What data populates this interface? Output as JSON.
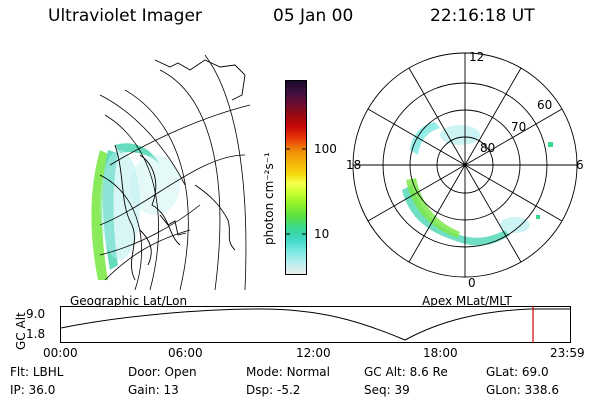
{
  "header": {
    "instrument": "Ultraviolet Imager",
    "date": "05 Jan 00",
    "time": "22:16:18 UT"
  },
  "geo_panel": {
    "label": "Geographic Lat/Lon"
  },
  "colorbar": {
    "unit": "photon cm⁻²s⁻¹",
    "ticks": [
      "100",
      "10"
    ],
    "colors": [
      "#1a0a2a",
      "#3d0f3f",
      "#6a0c30",
      "#9a0a12",
      "#c80808",
      "#ea3a08",
      "#f08a08",
      "#f5b00a",
      "#f5d80a",
      "#f6ff4a",
      "#c8ff30",
      "#8ef02a",
      "#5ae040",
      "#38d890",
      "#40d8c8",
      "#78e8e0",
      "#b8f0f0",
      "#ececec"
    ]
  },
  "polar_panel": {
    "label": "Apex MLat/MLT",
    "mlt_labels": [
      "12",
      "18",
      "6",
      "0"
    ],
    "lat_labels": [
      "60",
      "70",
      "80"
    ]
  },
  "altitude_plot": {
    "ylabel": "GC Alt",
    "y_ticks": [
      "9.0",
      "1.8"
    ],
    "x_ticks": [
      "00:00",
      "06:00",
      "12:00",
      "18:00",
      "23:59"
    ],
    "marker_time": "22:16"
  },
  "status": {
    "row1": [
      {
        "key": "Flt:",
        "value": "LBHL"
      },
      {
        "key": "Door:",
        "value": "Open"
      },
      {
        "key": "Mode:",
        "value": "Normal"
      },
      {
        "key": "GC Alt:",
        "value": "8.6 Re"
      },
      {
        "key": "GLat:",
        "value": "69.0"
      }
    ],
    "row2": [
      {
        "key": "IP:",
        "value": "36.0"
      },
      {
        "key": "Gain:",
        "value": "13"
      },
      {
        "key": "Dsp:",
        "value": "-5.2"
      },
      {
        "key": "Seq:",
        "value": "39"
      },
      {
        "key": "GLon:",
        "value": "338.6"
      }
    ]
  }
}
